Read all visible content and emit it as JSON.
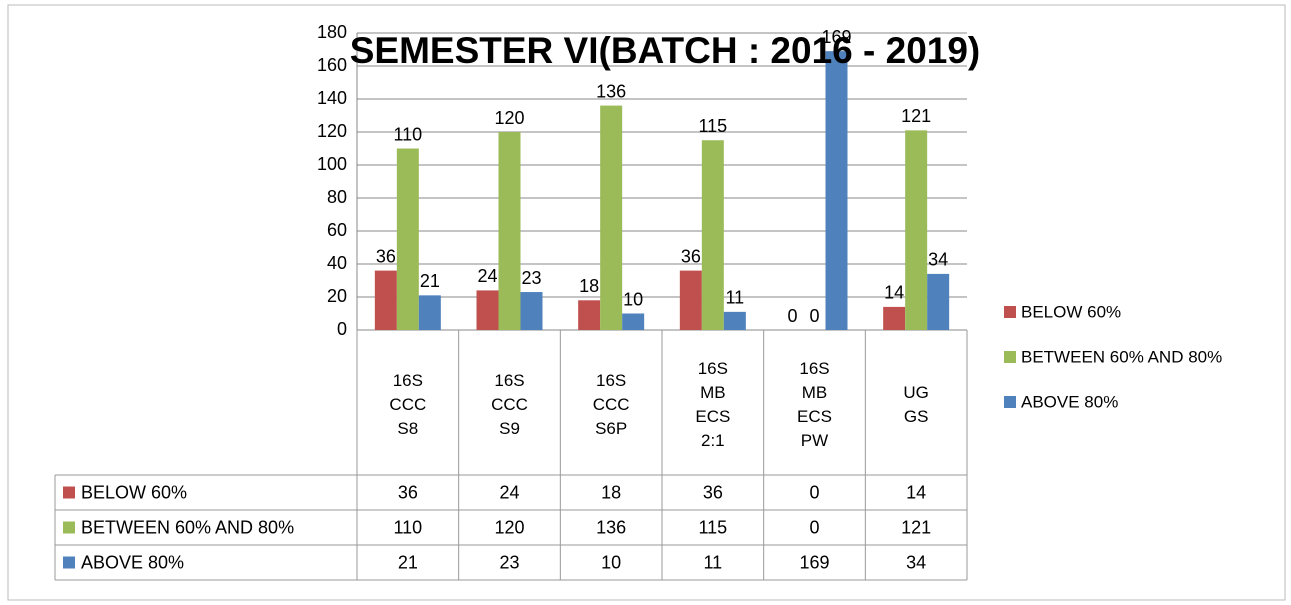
{
  "chart_data": {
    "type": "bar",
    "title": "SEMESTER VI(BATCH : 2016 - 2019)",
    "categories": [
      "16S CCC S8",
      "16S CCC S9",
      "16S CCC S6P",
      "16S MB ECS 2:1",
      "16S MB ECS PW",
      "UG GS"
    ],
    "series": [
      {
        "name": "BELOW 60%",
        "color": "#c0504d",
        "values": [
          36,
          24,
          18,
          36,
          0,
          14
        ]
      },
      {
        "name": "BETWEEN 60% AND 80%",
        "color": "#9bbb59",
        "values": [
          110,
          120,
          136,
          115,
          0,
          121
        ]
      },
      {
        "name": "ABOVE 80%",
        "color": "#4f81bd",
        "values": [
          21,
          23,
          10,
          11,
          169,
          34
        ]
      }
    ],
    "ylim": [
      0,
      180
    ],
    "yticks": [
      0,
      20,
      40,
      60,
      80,
      100,
      120,
      140,
      160,
      180
    ],
    "grid": true,
    "legend": "right"
  }
}
